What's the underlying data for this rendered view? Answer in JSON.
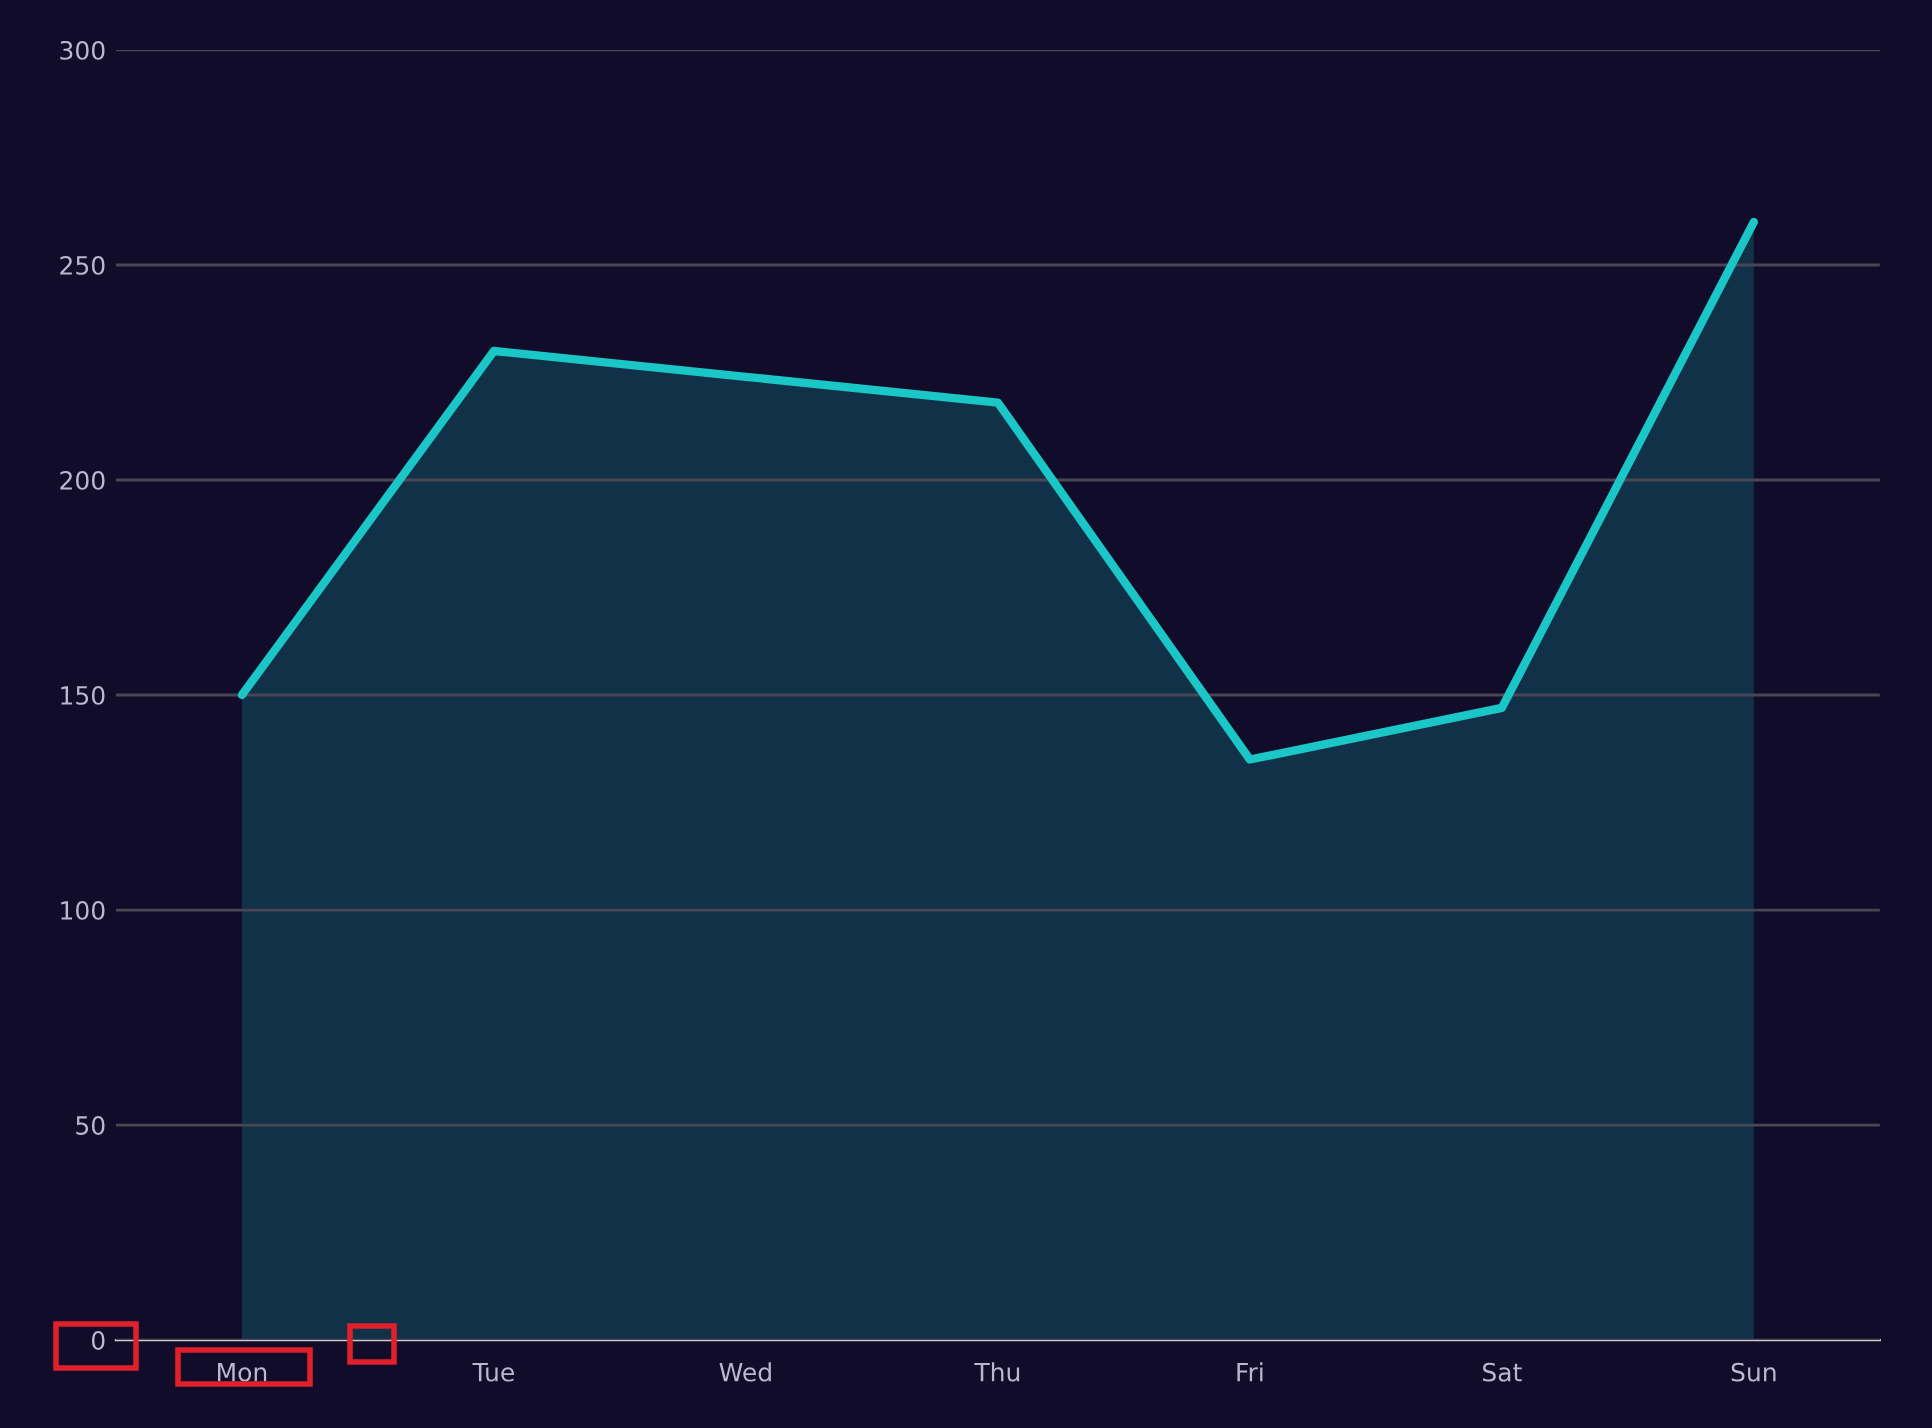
{
  "chart_data": {
    "type": "area",
    "categories": [
      "Mon",
      "Tue",
      "Wed",
      "Thu",
      "Fri",
      "Sat",
      "Sun"
    ],
    "series": [
      {
        "color": "#1ac6c6",
        "values": [
          150,
          230,
          224,
          218,
          135,
          147,
          260
        ]
      }
    ],
    "ylim": [
      0,
      300
    ],
    "yticks": [
      0,
      50,
      100,
      150,
      200,
      250,
      300
    ],
    "grid": "y",
    "legend": false
  }
}
